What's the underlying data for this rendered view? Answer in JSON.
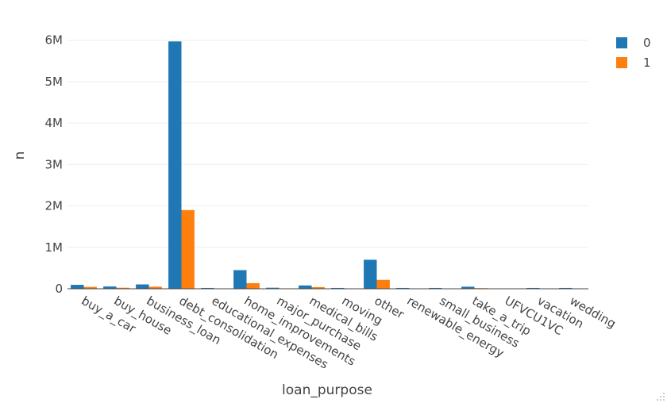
{
  "chart_data": {
    "type": "bar",
    "xlabel": "loan_purpose",
    "ylabel": "n",
    "ylim": [
      0,
      6300000
    ],
    "yticks": [
      0,
      1000000,
      2000000,
      3000000,
      4000000,
      5000000,
      6000000
    ],
    "ytick_labels": [
      "0",
      "1M",
      "2M",
      "3M",
      "4M",
      "5M",
      "6M"
    ],
    "grid": true,
    "legend_position": "top-right",
    "categories": [
      "buy_a_car",
      "buy_house",
      "business_loan",
      "debt_consolidation",
      "educational_expenses",
      "home_improvements",
      "major_purchase",
      "medical_bills",
      "moving",
      "other",
      "renewable_energy",
      "small_business",
      "take_a_trip",
      "UFVCU1VC",
      "vacation",
      "wedding"
    ],
    "series": [
      {
        "name": "0",
        "color": "#1f77b4",
        "values": [
          95000,
          55000,
          105000,
          5970000,
          20000,
          450000,
          25000,
          80000,
          20000,
          700000,
          20000,
          20000,
          50000,
          0,
          20000,
          20000
        ]
      },
      {
        "name": "1",
        "color": "#ff7f0e",
        "values": [
          45000,
          25000,
          50000,
          1900000,
          8000,
          135000,
          10000,
          40000,
          8000,
          215000,
          8000,
          8000,
          15000,
          0,
          8000,
          8000
        ]
      }
    ]
  }
}
